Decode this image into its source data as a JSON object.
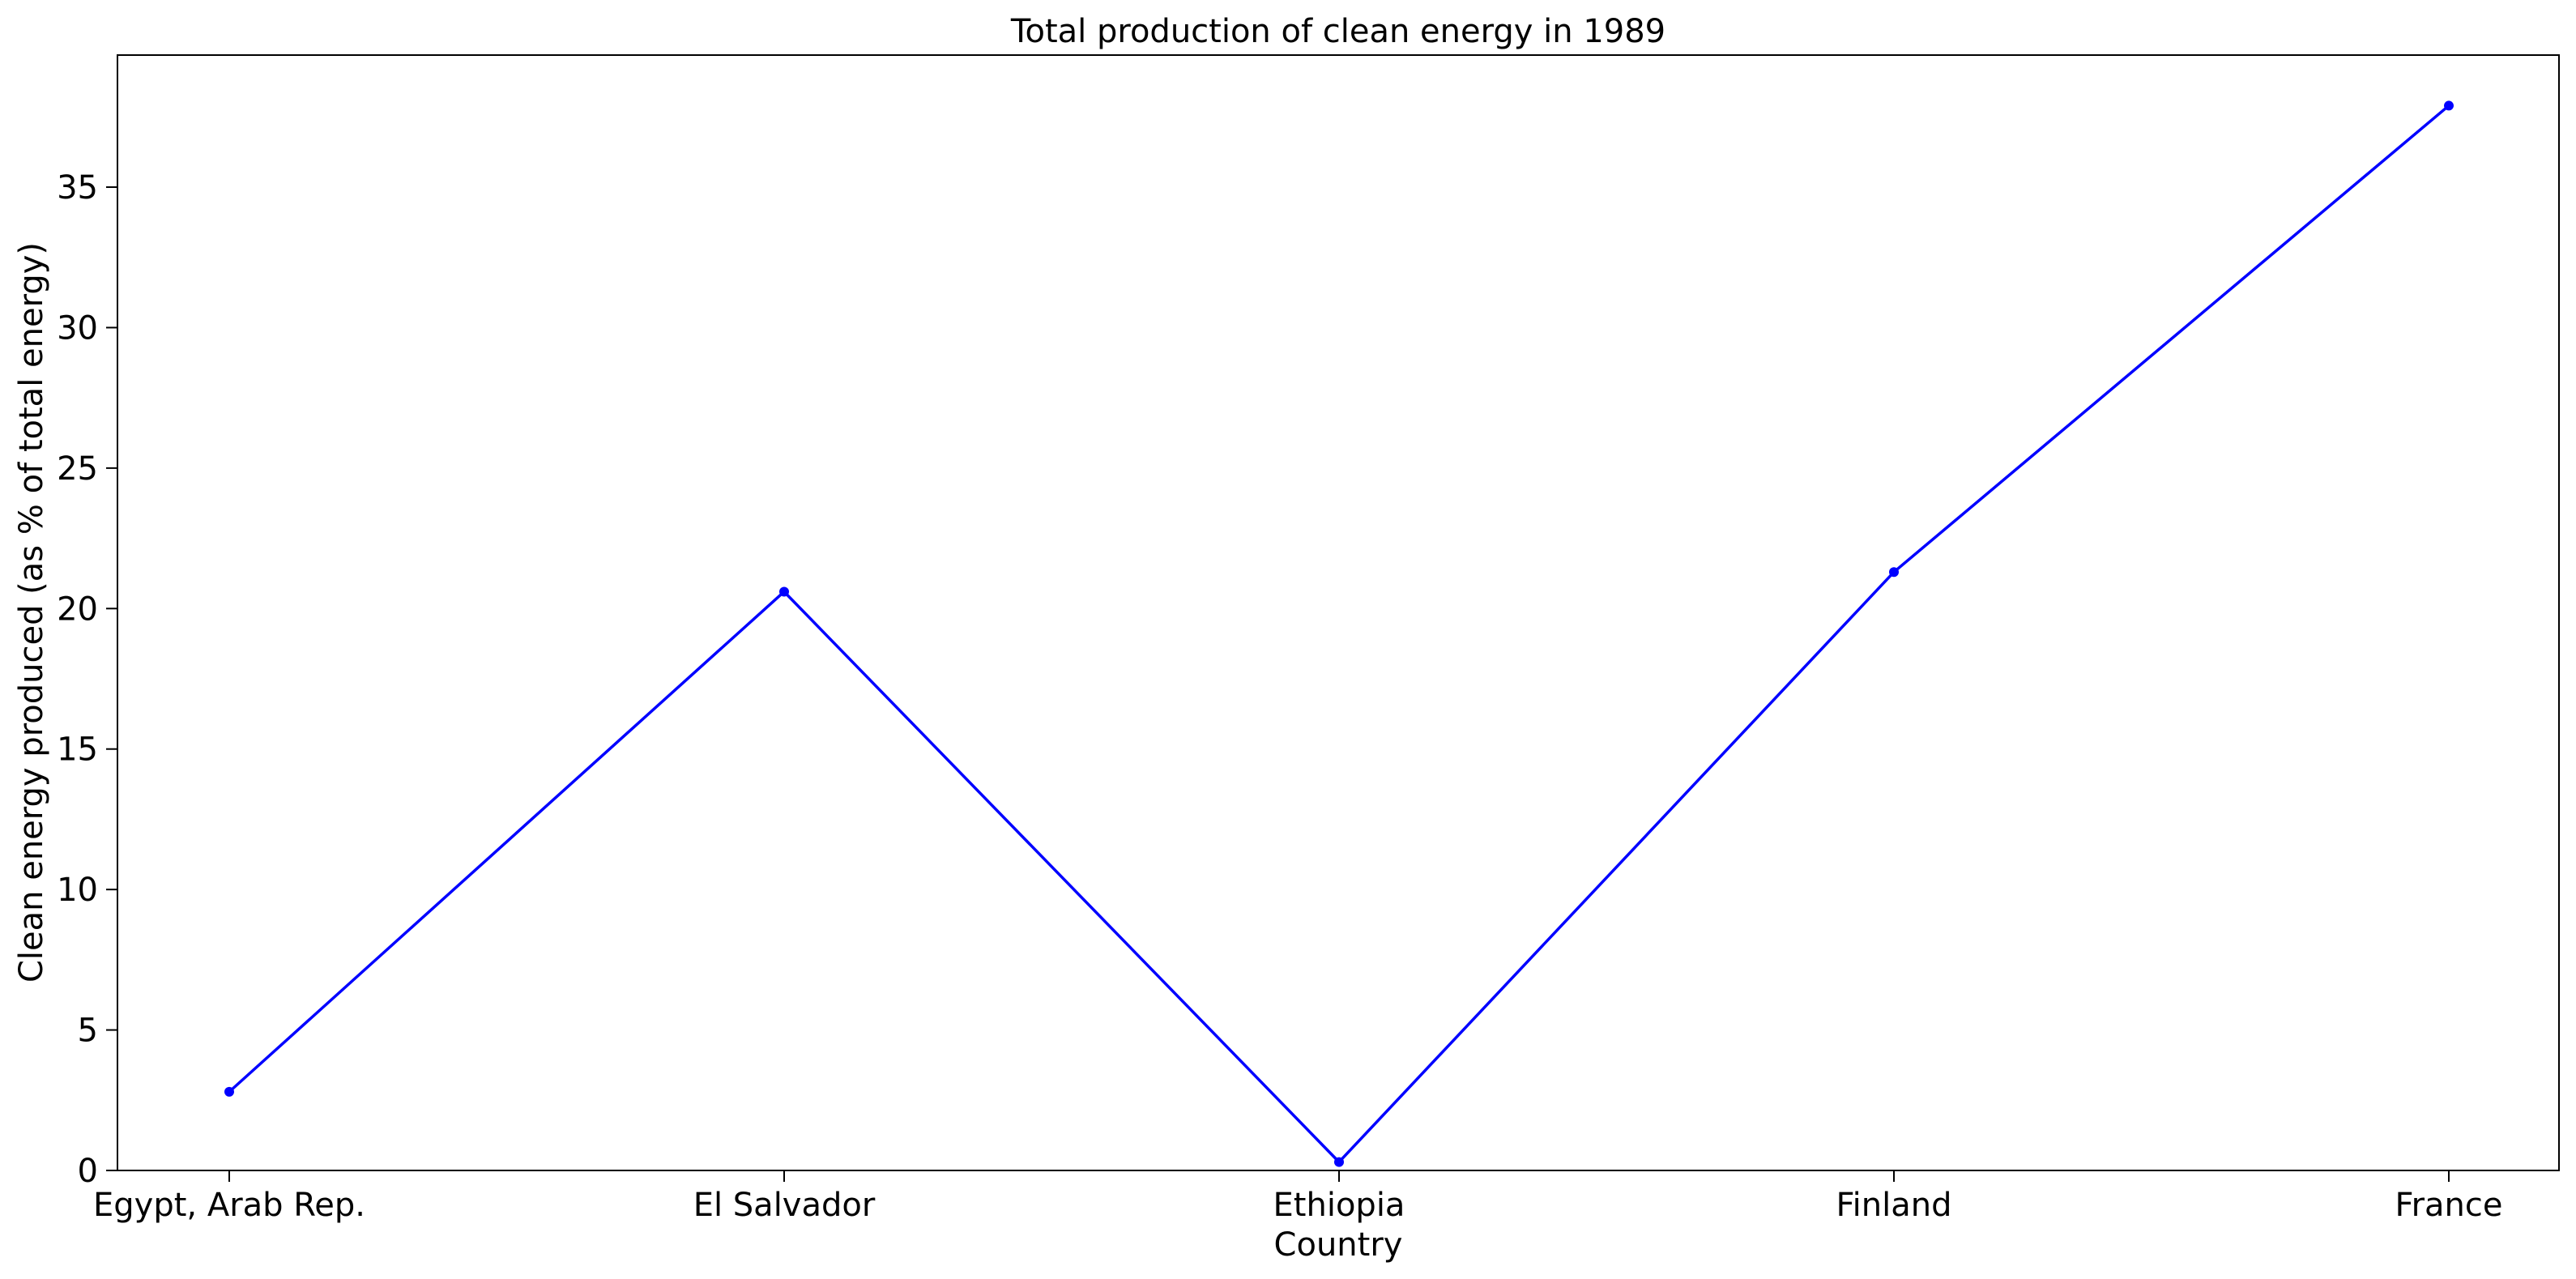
{
  "chart_data": {
    "type": "line",
    "title": "Total production of clean energy in 1989",
    "xlabel": "Country",
    "ylabel": "Clean energy produced (as % of total energy)",
    "categories": [
      "Egypt, Arab Rep.",
      "El Salvador",
      "Ethiopia",
      "Finland",
      "France"
    ],
    "series": [
      {
        "values": [
          2.8,
          20.6,
          0.3,
          21.3,
          37.9
        ]
      }
    ],
    "ylim": [
      0,
      39.7
    ],
    "yticks": [
      0,
      5,
      10,
      15,
      20,
      25,
      30,
      35
    ],
    "grid": false,
    "legend": "none",
    "line_color": "#0000ff"
  }
}
